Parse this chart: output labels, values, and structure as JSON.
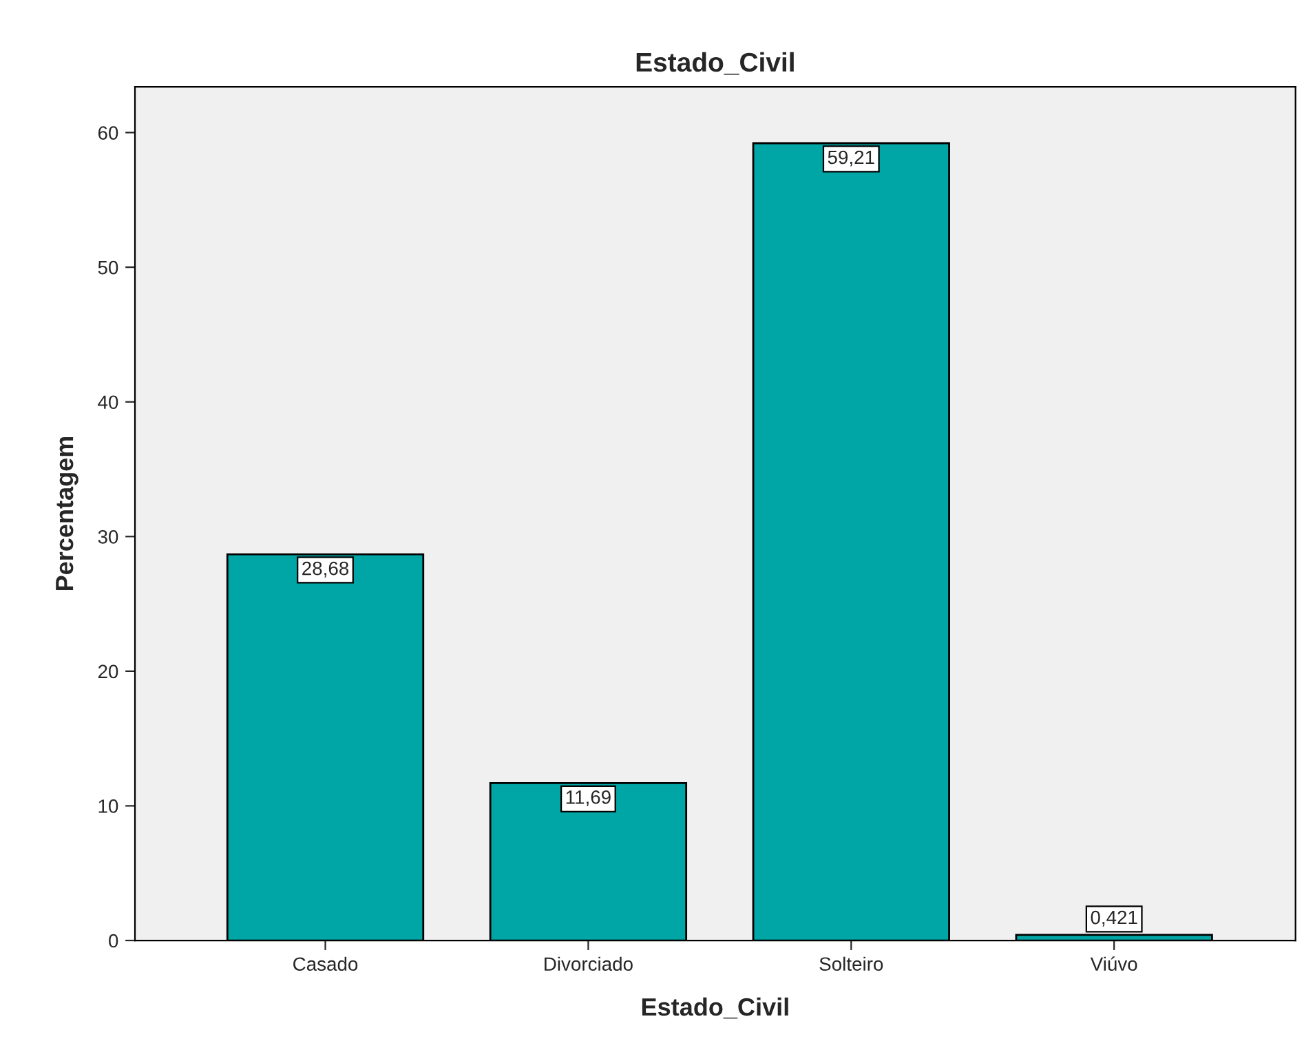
{
  "chart_data": {
    "type": "bar",
    "title": "Estado_Civil",
    "xlabel": "Estado_Civil",
    "ylabel": "Percentagem",
    "categories": [
      "Casado",
      "Divorciado",
      "Solteiro",
      "Viúvo"
    ],
    "values": [
      28.68,
      11.69,
      59.21,
      0.421
    ],
    "value_labels": [
      "28,68",
      "11,69",
      "59,21",
      "0,421"
    ],
    "color": "#00a6a6",
    "ylim": [
      0,
      63.4
    ],
    "yticks": [
      0,
      10,
      20,
      30,
      40,
      50,
      60
    ],
    "grid": false,
    "legend": false
  }
}
